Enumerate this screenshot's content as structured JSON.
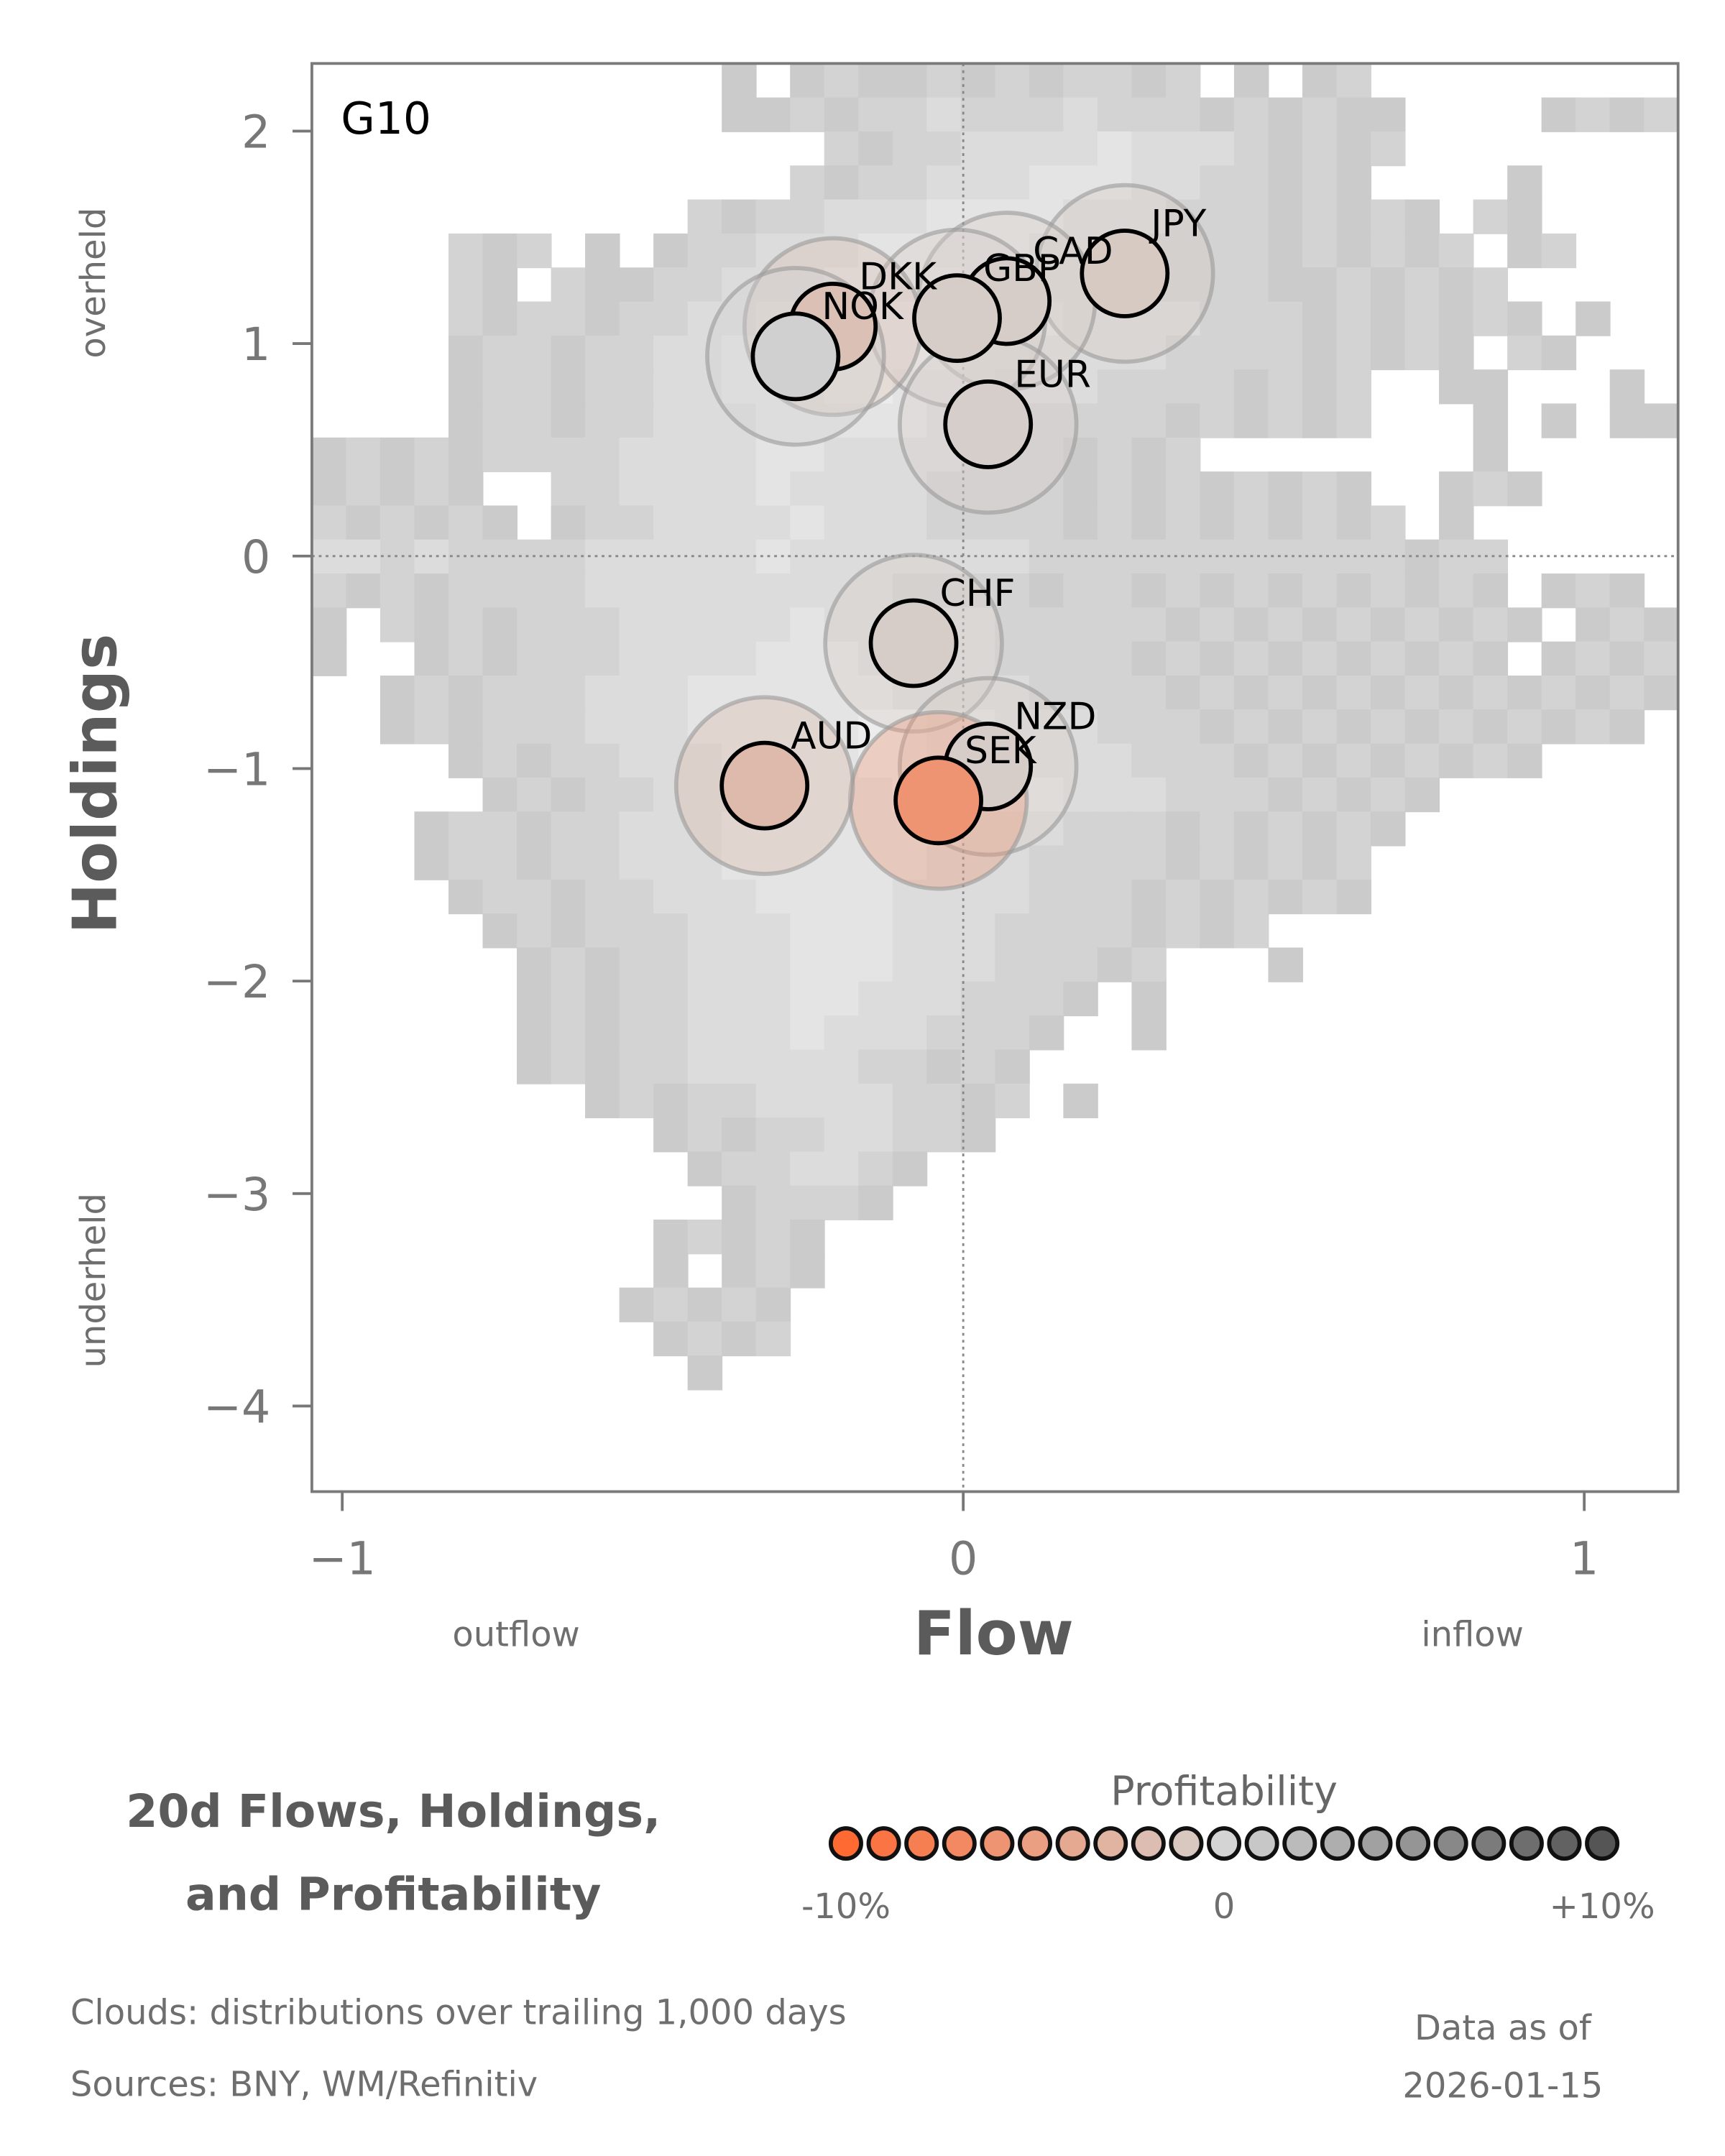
{
  "chart_data": {
    "type": "scatter",
    "panel_label": "G10",
    "title_lines": [
      "20d Flows, Holdings,",
      "and Profitability"
    ],
    "xlabel": "Flow",
    "ylabel": "Holdings",
    "x_side_labels": {
      "left": "outflow",
      "right": "inflow"
    },
    "y_side_labels": {
      "top": "overheld",
      "bottom": "underheld"
    },
    "xlim": [
      -1.05,
      1.15
    ],
    "ylim": [
      -4.4,
      2.32
    ],
    "xticks": [
      {
        "v": -1,
        "label": "−1"
      },
      {
        "v": 0,
        "label": "0"
      },
      {
        "v": 1,
        "label": "1"
      }
    ],
    "yticks": [
      {
        "v": 2,
        "label": "2"
      },
      {
        "v": 1,
        "label": "1"
      },
      {
        "v": 0,
        "label": "0"
      },
      {
        "v": -1,
        "label": "−1"
      },
      {
        "v": -2,
        "label": "−2"
      },
      {
        "v": -3,
        "label": "−3"
      },
      {
        "v": -4,
        "label": "−4"
      }
    ],
    "reference_lines": {
      "x": 0,
      "y": 0,
      "style": "dotted"
    },
    "points": [
      {
        "name": "JPY",
        "x": 0.26,
        "y": 1.33,
        "profit": -0.8
      },
      {
        "name": "CAD",
        "x": 0.07,
        "y": 1.2,
        "profit": -0.5
      },
      {
        "name": "GBP",
        "x": -0.01,
        "y": 1.12,
        "profit": -0.5
      },
      {
        "name": "DKK",
        "x": -0.21,
        "y": 1.08,
        "profit": -1.7
      },
      {
        "name": "NOK",
        "x": -0.27,
        "y": 0.94,
        "profit": 0.3
      },
      {
        "name": "EUR",
        "x": 0.04,
        "y": 0.62,
        "profit": -0.4
      },
      {
        "name": "CHF",
        "x": -0.08,
        "y": -0.41,
        "profit": -0.5
      },
      {
        "name": "NZD",
        "x": 0.04,
        "y": -0.99,
        "profit": -0.5
      },
      {
        "name": "SEK",
        "x": -0.04,
        "y": -1.15,
        "profit": -6.0
      },
      {
        "name": "AUD",
        "x": -0.32,
        "y": -1.08,
        "profit": -2.3
      }
    ],
    "cloud_grid": {
      "cols": 40,
      "rows": 42,
      "shades": [
        "#ffffff",
        "#cbcbcb",
        "#d3d3d3",
        "#dcdcdc",
        "#e4e4e4",
        "#ececec"
      ],
      "rows_data": [
        [
          [
            12,
            "1012112121221201012"
          ]
        ],
        [
          [
            12,
            "11212232223222121211"
          ],
          [
            36,
            "1212"
          ]
        ],
        [
          [
            15,
            "21223333433321212"
          ]
        ],
        [
          [
            14,
            "21223334443322121"
          ],
          [
            35,
            "1"
          ]
        ],
        [
          [
            11,
            "2122333444433322212121"
          ],
          [
            34,
            "21"
          ]
        ],
        [
          [
            4,
            "21201"
          ],
          [
            10,
            "122333444443332222121212"
          ],
          [
            35,
            "12"
          ]
        ],
        [
          [
            4,
            "2102112233344454433322221121212"
          ]
        ],
        [
          [
            4,
            "21221223344455544433332221212121"
          ],
          [
            37,
            "1"
          ]
        ],
        [
          [
            4,
            "122122334455555443333222212121"
          ],
          [
            35,
            "21"
          ]
        ],
        [
          [
            4,
            "1221223344455444333222212120"
          ],
          [
            33,
            "11"
          ],
          [
            38,
            "1"
          ]
        ],
        [
          [
            4,
            "122122333444443332222121212"
          ],
          [
            34,
            "1"
          ],
          [
            36,
            "1"
          ],
          [
            38,
            "11"
          ]
        ],
        [
          [
            0,
            "12121222233334433332221212"
          ],
          [
            34,
            "1"
          ]
        ],
        [
          [
            0,
            "1212100223333433332222121212121"
          ],
          [
            33,
            "121"
          ]
        ],
        [
          [
            0,
            "2121210122333343332222121212121201"
          ]
        ],
        [
          [
            0,
            "33232222333334333333322222222222122"
          ]
        ],
        [
          [
            0,
            "212122223333333332222122121212121210121"
          ]
        ],
        [
          [
            0,
            "1021212223333343333322222121212121210121"
          ]
        ],
        [
          [
            0,
            "1001212223333444333322221212121212101212"
          ]
        ],
        [
          [
            2,
            "12122233344444433332222121212121212121"
          ]
        ],
        [
          [
            2,
            "1212223334444455443332221212121212121"
          ]
        ],
        [
          [
            4,
            "12122333444455444333222121212121"
          ]
        ],
        [
          [
            5,
            "1212233344445544433322212121"
          ]
        ],
        [
          [
            3,
            "12212233344444443332221212121"
          ]
        ],
        [
          [
            3,
            "1221223334444443332222121212"
          ]
        ],
        [
          [
            4,
            "122122333444433332221212121"
          ]
        ],
        [
          [
            5,
            "12122233344433322221212"
          ]
        ],
        [
          [
            6,
            "1212233344433322212"
          ],
          [
            28,
            "1"
          ]
        ],
        [
          [
            6,
            "12122333443332221"
          ],
          [
            24,
            "1"
          ]
        ],
        [
          [
            6,
            "1212233343332221"
          ],
          [
            24,
            "1"
          ]
        ],
        [
          [
            6,
            "121223333322121"
          ]
        ],
        [
          [
            8,
            "1212233332212"
          ],
          [
            22,
            "1"
          ]
        ],
        [
          [
            10,
            "1212233221"
          ]
        ],
        [
          [
            11,
            "1223321"
          ]
        ],
        [
          [
            12,
            "12221"
          ]
        ],
        [
          [
            10,
            "12121"
          ]
        ],
        [
          [
            10,
            "10121"
          ]
        ],
        [
          [
            9,
            "12121"
          ]
        ],
        [
          [
            10,
            "1212"
          ]
        ],
        [
          [
            11,
            "1"
          ]
        ]
      ]
    },
    "legend": {
      "title": "Profitability",
      "range": [
        -10,
        10
      ],
      "steps": 21,
      "tick_labels": {
        "min": "-10%",
        "mid": "0",
        "max": "+10%"
      },
      "colors": {
        "negative_end": "#ff6a33",
        "neutral": "#d4d2d0",
        "positive_end": "#555555"
      }
    }
  },
  "footer": {
    "clouds_note": "Clouds:  distributions over trailing 1,000 days",
    "sources": "Sources:  BNY, WM/Refinitiv",
    "data_as_of_label": "Data as of",
    "data_as_of_date": "2026-01-15"
  }
}
